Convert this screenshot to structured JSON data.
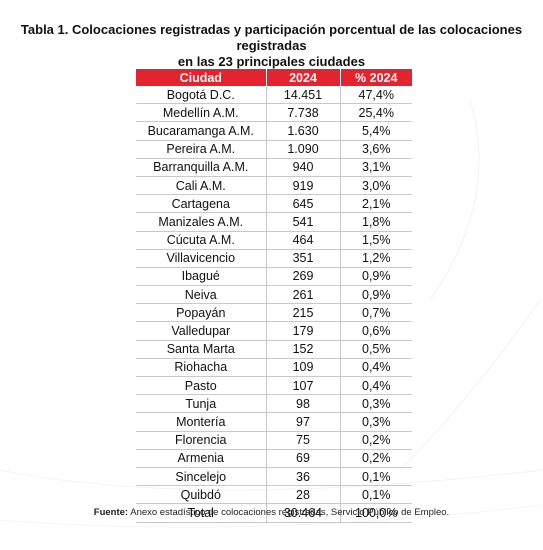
{
  "title": {
    "line1": "Tabla 1. Colocaciones registradas y participación porcentual de las colocaciones registradas",
    "line2": "en las 23 principales ciudades"
  },
  "table": {
    "headers": [
      "Ciudad",
      "2024",
      "% 2024"
    ],
    "rows": [
      {
        "city": "Bogotá D.C.",
        "value": "14.451",
        "pct": "47,4%"
      },
      {
        "city": "Medellín A.M.",
        "value": "7.738",
        "pct": "25,4%"
      },
      {
        "city": "Bucaramanga A.M.",
        "value": "1.630",
        "pct": "5,4%"
      },
      {
        "city": "Pereira A.M.",
        "value": "1.090",
        "pct": "3,6%"
      },
      {
        "city": "Barranquilla A.M.",
        "value": "940",
        "pct": "3,1%"
      },
      {
        "city": "Cali A.M.",
        "value": "919",
        "pct": "3,0%"
      },
      {
        "city": "Cartagena",
        "value": "645",
        "pct": "2,1%"
      },
      {
        "city": "Manizales A.M.",
        "value": "541",
        "pct": "1,8%"
      },
      {
        "city": "Cúcuta A.M.",
        "value": "464",
        "pct": "1,5%"
      },
      {
        "city": "Villavicencio",
        "value": "351",
        "pct": "1,2%"
      },
      {
        "city": "Ibagué",
        "value": "269",
        "pct": "0,9%"
      },
      {
        "city": "Neiva",
        "value": "261",
        "pct": "0,9%"
      },
      {
        "city": "Popayán",
        "value": "215",
        "pct": "0,7%"
      },
      {
        "city": "Valledupar",
        "value": "179",
        "pct": "0,6%"
      },
      {
        "city": "Santa Marta",
        "value": "152",
        "pct": "0,5%"
      },
      {
        "city": "Riohacha",
        "value": "109",
        "pct": "0,4%"
      },
      {
        "city": "Pasto",
        "value": "107",
        "pct": "0,4%"
      },
      {
        "city": "Tunja",
        "value": "98",
        "pct": "0,3%"
      },
      {
        "city": "Montería",
        "value": "97",
        "pct": "0,3%"
      },
      {
        "city": "Florencia",
        "value": "75",
        "pct": "0,2%"
      },
      {
        "city": "Armenia",
        "value": "69",
        "pct": "0,2%"
      },
      {
        "city": "Sincelejo",
        "value": "36",
        "pct": "0,1%"
      },
      {
        "city": "Quibdó",
        "value": "28",
        "pct": "0,1%"
      }
    ],
    "total": {
      "city": "Total",
      "value": "30.464",
      "pct": "100,0%"
    }
  },
  "source": {
    "label": "Fuente:",
    "text": "Anexo estadístico de colocaciones registradas, Servicio Público de Empleo."
  },
  "colors": {
    "header_bg": "#e3232d",
    "header_text": "#ffffff"
  }
}
